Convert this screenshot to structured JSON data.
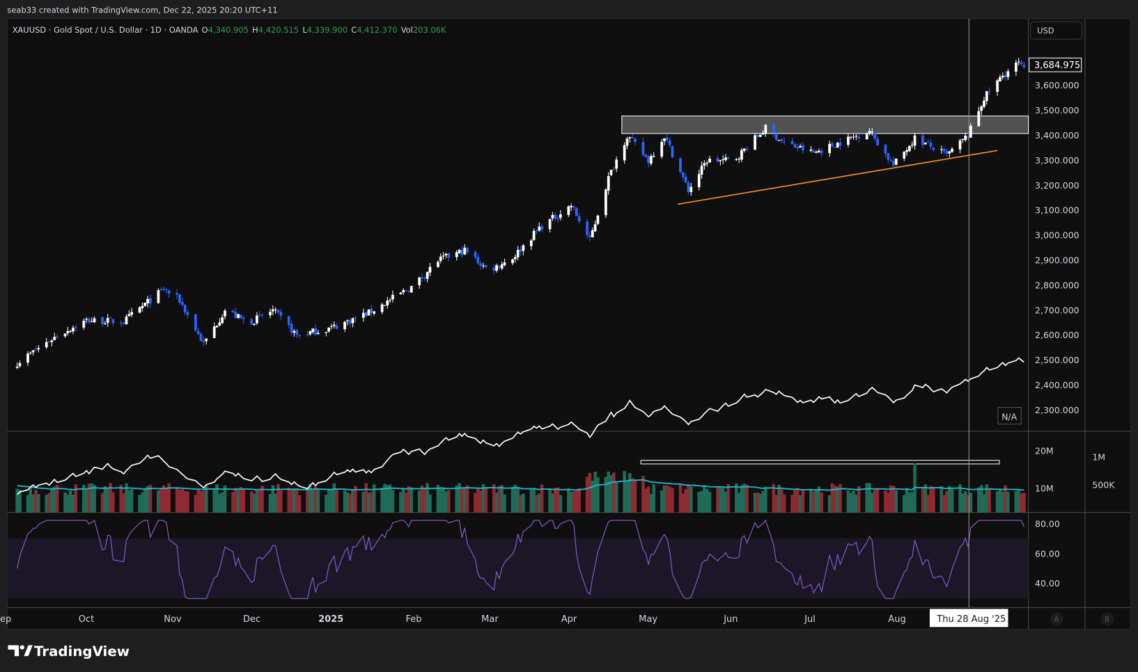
{
  "header": {
    "credit": "seab33 created with TradingView.com, Dec 22, 2025 20:20 UTC+11"
  },
  "legend": {
    "symbol": "XAUUSD · Gold Spot / U.S. Dollar · 1D · OANDA",
    "o_label": "O",
    "o": "4,340.905",
    "h_label": "H",
    "h": "4,420.515",
    "l_label": "L",
    "l": "4,339.900",
    "c_label": "C",
    "c": "4,412.370",
    "vol_label": "Vol",
    "vol": "203.06K"
  },
  "currency_button": "USD",
  "last_price": "3,684.975",
  "na_badge": "N/A",
  "price_axis": [
    "3,600.000",
    "3,500.000",
    "3,400.000",
    "3,300.000",
    "3,200.000",
    "3,100.000",
    "3,000.000",
    "2,900.000",
    "2,800.000",
    "2,700.000",
    "2,600.000",
    "2,500.000",
    "2,400.000",
    "2,300.000"
  ],
  "volume_axis": [
    "20M",
    "10M"
  ],
  "volume_axis_b": [
    "1M",
    "500K"
  ],
  "rsi_axis": [
    "80.00",
    "60.00",
    "40.00"
  ],
  "time_axis": [
    "ep",
    "Oct",
    "Nov",
    "Dec",
    "2025",
    "Feb",
    "Mar",
    "Apr",
    "May",
    "Jun",
    "Jul",
    "Aug"
  ],
  "crosshair_label": "Thu 28 Aug '25",
  "scale_buttons": [
    "A",
    "B"
  ],
  "brand": "TradingView",
  "colors": {
    "up": "#ffffff",
    "down": "#2962ff",
    "legend_value": "#2e9e4f",
    "vol_up": "#1f6b57",
    "vol_down": "#8e2a33",
    "vol_ma": "#1fb6c9",
    "rsi": "#7e57c2",
    "trendline": "#f7931a"
  },
  "chart_data": {
    "type": "candlestick",
    "symbol": "XAUUSD",
    "interval": "1D",
    "ylim": [
      2250,
      3750
    ],
    "anchors": [
      [
        "2024-09-05",
        2490
      ],
      [
        "2024-09-20",
        2600
      ],
      [
        "2024-10-01",
        2660
      ],
      [
        "2024-10-15",
        2655
      ],
      [
        "2024-10-30",
        2785
      ],
      [
        "2024-11-05",
        2740
      ],
      [
        "2024-11-14",
        2565
      ],
      [
        "2024-11-22",
        2700
      ],
      [
        "2024-12-01",
        2650
      ],
      [
        "2024-12-10",
        2700
      ],
      [
        "2024-12-19",
        2600
      ],
      [
        "2025-01-01",
        2630
      ],
      [
        "2025-01-15",
        2690
      ],
      [
        "2025-02-01",
        2800
      ],
      [
        "2025-02-10",
        2900
      ],
      [
        "2025-02-20",
        2940
      ],
      [
        "2025-03-01",
        2860
      ],
      [
        "2025-03-10",
        2910
      ],
      [
        "2025-03-20",
        3030
      ],
      [
        "2025-04-01",
        3120
      ],
      [
        "2025-04-08",
        2980
      ],
      [
        "2025-04-15",
        3230
      ],
      [
        "2025-04-22",
        3400
      ],
      [
        "2025-04-30",
        3300
      ],
      [
        "2025-05-06",
        3400
      ],
      [
        "2025-05-15",
        3180
      ],
      [
        "2025-05-22",
        3300
      ],
      [
        "2025-06-01",
        3300
      ],
      [
        "2025-06-13",
        3430
      ],
      [
        "2025-06-20",
        3370
      ],
      [
        "2025-07-01",
        3330
      ],
      [
        "2025-07-22",
        3420
      ],
      [
        "2025-07-31",
        3280
      ],
      [
        "2025-08-08",
        3390
      ],
      [
        "2025-08-20",
        3320
      ],
      [
        "2025-08-28",
        3400
      ],
      [
        "2025-09-03",
        3550
      ],
      [
        "2025-09-10",
        3640
      ],
      [
        "2025-09-16",
        3690
      ],
      [
        "2025-09-18",
        3660
      ]
    ],
    "resistance_zone": {
      "from": "2025-04-20",
      "to": "2025-09-18",
      "top": 3478,
      "bottom": 3408
    },
    "trendline": {
      "start": [
        "2025-05-11",
        3125
      ],
      "end": [
        "2025-09-08",
        3340
      ]
    },
    "crosshair_date": "2025-08-28",
    "rsi_band": [
      30,
      70
    ]
  }
}
